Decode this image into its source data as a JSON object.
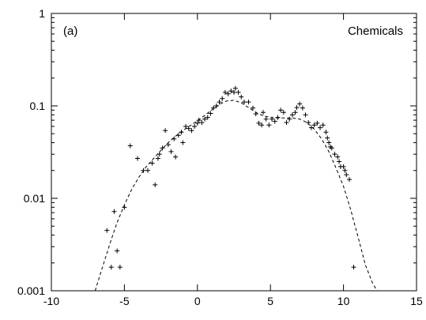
{
  "chart_data": {
    "type": "scatter",
    "panel_label": "(a)",
    "legend": "Chemicals",
    "xlim": [
      -10,
      15
    ],
    "ylim": [
      0.001,
      1
    ],
    "yscale": "log",
    "x_ticks": [
      -10,
      -5,
      0,
      5,
      10,
      15
    ],
    "y_ticks": [
      0.001,
      0.01,
      0.1,
      1
    ],
    "x_tick_labels": [
      "-10",
      "-5",
      "0",
      "5",
      "10",
      "15"
    ],
    "y_tick_labels": [
      "0.001",
      "0.01",
      "0.1",
      "1"
    ],
    "grid": false,
    "series": [
      {
        "marker": "plus",
        "points": [
          [
            -6.2,
            0.0045
          ],
          [
            -5.9,
            0.0018
          ],
          [
            -5.7,
            0.0072
          ],
          [
            -5.5,
            0.0027
          ],
          [
            -5.3,
            0.0018
          ],
          [
            -5.0,
            0.008
          ],
          [
            -4.6,
            0.037
          ],
          [
            -4.1,
            0.027
          ],
          [
            -3.7,
            0.02
          ],
          [
            -3.4,
            0.02
          ],
          [
            -3.1,
            0.024
          ],
          [
            -2.9,
            0.014
          ],
          [
            -2.7,
            0.027
          ],
          [
            -2.6,
            0.03
          ],
          [
            -2.4,
            0.035
          ],
          [
            -2.2,
            0.054
          ],
          [
            -2.0,
            0.038
          ],
          [
            -1.8,
            0.032
          ],
          [
            -1.6,
            0.044
          ],
          [
            -1.5,
            0.028
          ],
          [
            -1.3,
            0.048
          ],
          [
            -1.1,
            0.052
          ],
          [
            -1.0,
            0.04
          ],
          [
            -0.8,
            0.06
          ],
          [
            -0.6,
            0.057
          ],
          [
            -0.4,
            0.054
          ],
          [
            -0.2,
            0.06
          ],
          [
            0.0,
            0.065
          ],
          [
            0.1,
            0.07
          ],
          [
            0.3,
            0.066
          ],
          [
            0.5,
            0.072
          ],
          [
            0.7,
            0.075
          ],
          [
            0.9,
            0.083
          ],
          [
            1.1,
            0.095
          ],
          [
            1.3,
            0.1
          ],
          [
            1.5,
            0.11
          ],
          [
            1.7,
            0.12
          ],
          [
            1.9,
            0.14
          ],
          [
            2.1,
            0.135
          ],
          [
            2.3,
            0.145
          ],
          [
            2.5,
            0.14
          ],
          [
            2.6,
            0.155
          ],
          [
            2.8,
            0.14
          ],
          [
            3.0,
            0.125
          ],
          [
            3.2,
            0.11
          ],
          [
            3.5,
            0.11
          ],
          [
            3.8,
            0.095
          ],
          [
            4.0,
            0.082
          ],
          [
            4.2,
            0.065
          ],
          [
            4.4,
            0.062
          ],
          [
            4.5,
            0.085
          ],
          [
            4.7,
            0.072
          ],
          [
            4.9,
            0.062
          ],
          [
            5.1,
            0.072
          ],
          [
            5.3,
            0.068
          ],
          [
            5.5,
            0.075
          ],
          [
            5.7,
            0.09
          ],
          [
            5.9,
            0.085
          ],
          [
            6.1,
            0.066
          ],
          [
            6.3,
            0.072
          ],
          [
            6.5,
            0.08
          ],
          [
            6.7,
            0.085
          ],
          [
            6.8,
            0.096
          ],
          [
            7.0,
            0.105
          ],
          [
            7.2,
            0.095
          ],
          [
            7.4,
            0.08
          ],
          [
            7.6,
            0.066
          ],
          [
            7.8,
            0.058
          ],
          [
            8.0,
            0.062
          ],
          [
            8.2,
            0.065
          ],
          [
            8.4,
            0.058
          ],
          [
            8.6,
            0.062
          ],
          [
            8.8,
            0.052
          ],
          [
            8.9,
            0.045
          ],
          [
            9.0,
            0.04
          ],
          [
            9.1,
            0.036
          ],
          [
            9.2,
            0.035
          ],
          [
            9.4,
            0.03
          ],
          [
            9.6,
            0.028
          ],
          [
            9.7,
            0.025
          ],
          [
            9.8,
            0.022
          ],
          [
            10.0,
            0.022
          ],
          [
            10.1,
            0.02
          ],
          [
            10.2,
            0.018
          ],
          [
            10.4,
            0.016
          ],
          [
            10.7,
            0.0018
          ]
        ]
      },
      {
        "style": "dashed-line",
        "points": [
          [
            -7.0,
            0.001
          ],
          [
            -6.5,
            0.0018
          ],
          [
            -6.0,
            0.0032
          ],
          [
            -5.5,
            0.0055
          ],
          [
            -5.0,
            0.0085
          ],
          [
            -4.5,
            0.0125
          ],
          [
            -4.0,
            0.017
          ],
          [
            -3.5,
            0.022
          ],
          [
            -3.0,
            0.027
          ],
          [
            -2.5,
            0.033
          ],
          [
            -2.0,
            0.04
          ],
          [
            -1.5,
            0.047
          ],
          [
            -1.0,
            0.054
          ],
          [
            -0.5,
            0.061
          ],
          [
            0.0,
            0.069
          ],
          [
            0.5,
            0.079
          ],
          [
            1.0,
            0.091
          ],
          [
            1.5,
            0.104
          ],
          [
            2.0,
            0.113
          ],
          [
            2.5,
            0.115
          ],
          [
            3.0,
            0.108
          ],
          [
            3.5,
            0.096
          ],
          [
            4.0,
            0.085
          ],
          [
            4.5,
            0.078
          ],
          [
            5.0,
            0.075
          ],
          [
            5.5,
            0.074
          ],
          [
            6.0,
            0.074
          ],
          [
            6.5,
            0.074
          ],
          [
            7.0,
            0.072
          ],
          [
            7.5,
            0.066
          ],
          [
            8.0,
            0.056
          ],
          [
            8.5,
            0.044
          ],
          [
            9.0,
            0.032
          ],
          [
            9.5,
            0.021
          ],
          [
            10.0,
            0.0135
          ],
          [
            10.5,
            0.0075
          ],
          [
            11.0,
            0.0038
          ],
          [
            11.5,
            0.0019
          ],
          [
            12.0,
            0.0012
          ],
          [
            12.3,
            0.001
          ]
        ]
      }
    ]
  }
}
